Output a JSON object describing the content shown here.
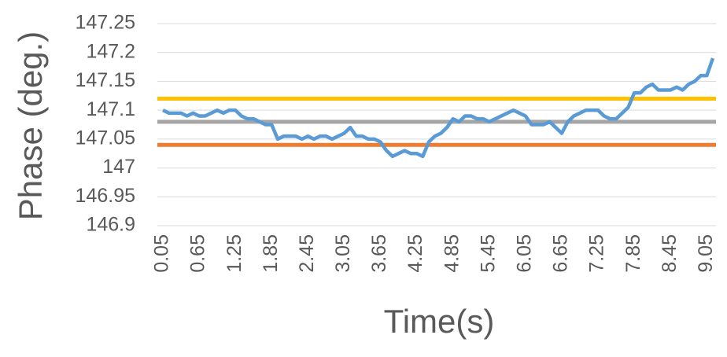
{
  "chart_data": {
    "type": "line",
    "x_label": "Time(s)",
    "y_label": "Phase (deg.)",
    "x": [
      0.05,
      0.15,
      0.25,
      0.35,
      0.45,
      0.55,
      0.65,
      0.75,
      0.85,
      0.95,
      1.05,
      1.15,
      1.25,
      1.35,
      1.45,
      1.55,
      1.65,
      1.75,
      1.85,
      1.95,
      2.05,
      2.15,
      2.25,
      2.35,
      2.45,
      2.55,
      2.65,
      2.75,
      2.85,
      2.95,
      3.05,
      3.15,
      3.25,
      3.35,
      3.45,
      3.55,
      3.65,
      3.75,
      3.85,
      3.95,
      4.05,
      4.15,
      4.25,
      4.35,
      4.45,
      4.55,
      4.65,
      4.75,
      4.85,
      4.95,
      5.05,
      5.15,
      5.25,
      5.35,
      5.45,
      5.55,
      5.65,
      5.75,
      5.85,
      5.95,
      6.05,
      6.15,
      6.25,
      6.35,
      6.45,
      6.55,
      6.65,
      6.75,
      6.85,
      6.95,
      7.05,
      7.15,
      7.25,
      7.35,
      7.45,
      7.55,
      7.65,
      7.75,
      7.85,
      7.95,
      8.05,
      8.15,
      8.25,
      8.35,
      8.45,
      8.55,
      8.65,
      8.75,
      8.85,
      8.95,
      9.05,
      9.15
    ],
    "series": [
      {
        "color": "#5b9bd5",
        "values": [
          147.1,
          147.095,
          147.095,
          147.095,
          147.09,
          147.095,
          147.09,
          147.09,
          147.095,
          147.1,
          147.095,
          147.1,
          147.1,
          147.09,
          147.085,
          147.085,
          147.08,
          147.075,
          147.075,
          147.05,
          147.055,
          147.055,
          147.055,
          147.05,
          147.055,
          147.05,
          147.055,
          147.055,
          147.05,
          147.055,
          147.06,
          147.07,
          147.055,
          147.055,
          147.05,
          147.05,
          147.045,
          147.03,
          147.02,
          147.025,
          147.03,
          147.025,
          147.025,
          147.02,
          147.045,
          147.055,
          147.06,
          147.07,
          147.085,
          147.08,
          147.09,
          147.09,
          147.085,
          147.085,
          147.08,
          147.085,
          147.09,
          147.095,
          147.1,
          147.095,
          147.09,
          147.075,
          147.075,
          147.075,
          147.08,
          147.07,
          147.06,
          147.08,
          147.09,
          147.095,
          147.1,
          147.1,
          147.1,
          147.09,
          147.085,
          147.085,
          147.095,
          147.105,
          147.13,
          147.13,
          147.14,
          147.145,
          147.135,
          147.135,
          147.135,
          147.14,
          147.135,
          147.145,
          147.15,
          147.16,
          147.16,
          147.19
        ]
      }
    ],
    "hlines": [
      {
        "value": 147.12,
        "color": "#ffc000"
      },
      {
        "value": 147.08,
        "color": "#a5a5a5"
      },
      {
        "value": 147.04,
        "color": "#ed7d31"
      }
    ],
    "xlim": [
      0.05,
      9.15
    ],
    "xticks": [
      0.05,
      0.65,
      1.25,
      1.85,
      2.45,
      3.05,
      3.65,
      4.25,
      4.85,
      5.45,
      6.05,
      6.65,
      7.25,
      7.85,
      8.45,
      9.05
    ],
    "ylim": [
      146.9,
      147.25
    ],
    "yticks": [
      146.9,
      146.95,
      147,
      147.05,
      147.1,
      147.15,
      147.2,
      147.25
    ],
    "grid": true
  }
}
